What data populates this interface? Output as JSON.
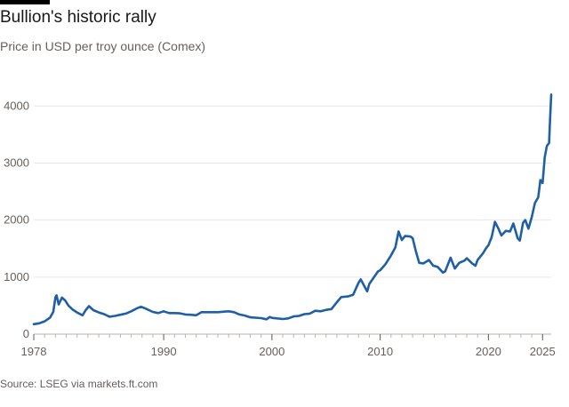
{
  "header": {
    "title": "Bullion's historic rally",
    "subtitle": "Price in USD per troy ounce (Comex)"
  },
  "footer": {
    "source": "Source: LSEG via markets.ft.com"
  },
  "colors": {
    "line": "#1f5fa6",
    "grid": "#e9e6e2",
    "axis": "#66605c"
  },
  "chart_data": {
    "type": "line",
    "title": "Bullion's historic rally",
    "subtitle": "Price in USD per troy ounce (Comex)",
    "xlabel": "",
    "ylabel": "",
    "xlim": [
      1978,
      2025.8
    ],
    "ylim": [
      0,
      4300
    ],
    "grid": true,
    "x_ticks": [
      1978,
      1990,
      2000,
      2010,
      2020,
      2025
    ],
    "y_ticks": [
      0,
      1000,
      2000,
      3000,
      4000
    ],
    "series": [
      {
        "values": [
          [
            1978.0,
            175
          ],
          [
            1978.5,
            190
          ],
          [
            1979.0,
            225
          ],
          [
            1979.5,
            290
          ],
          [
            1979.8,
            390
          ],
          [
            1980.0,
            650
          ],
          [
            1980.1,
            680
          ],
          [
            1980.3,
            520
          ],
          [
            1980.6,
            640
          ],
          [
            1980.9,
            590
          ],
          [
            1981.2,
            500
          ],
          [
            1981.6,
            430
          ],
          [
            1982.0,
            380
          ],
          [
            1982.5,
            330
          ],
          [
            1982.8,
            420
          ],
          [
            1983.1,
            490
          ],
          [
            1983.5,
            420
          ],
          [
            1984.0,
            380
          ],
          [
            1984.5,
            350
          ],
          [
            1985.0,
            305
          ],
          [
            1985.5,
            320
          ],
          [
            1986.0,
            340
          ],
          [
            1986.5,
            360
          ],
          [
            1987.0,
            400
          ],
          [
            1987.5,
            450
          ],
          [
            1987.9,
            480
          ],
          [
            1988.3,
            450
          ],
          [
            1989.0,
            390
          ],
          [
            1989.5,
            370
          ],
          [
            1990.0,
            400
          ],
          [
            1990.5,
            370
          ],
          [
            1991.0,
            370
          ],
          [
            1991.5,
            365
          ],
          [
            1992.0,
            345
          ],
          [
            1992.5,
            340
          ],
          [
            1993.0,
            330
          ],
          [
            1993.5,
            385
          ],
          [
            1994.0,
            385
          ],
          [
            1995.0,
            385
          ],
          [
            1996.0,
            400
          ],
          [
            1996.5,
            385
          ],
          [
            1997.0,
            345
          ],
          [
            1997.5,
            325
          ],
          [
            1998.0,
            295
          ],
          [
            1999.0,
            280
          ],
          [
            1999.5,
            260
          ],
          [
            1999.8,
            300
          ],
          [
            2000.0,
            285
          ],
          [
            2001.0,
            265
          ],
          [
            2001.5,
            275
          ],
          [
            2002.0,
            310
          ],
          [
            2002.5,
            320
          ],
          [
            2003.0,
            350
          ],
          [
            2003.5,
            360
          ],
          [
            2004.0,
            410
          ],
          [
            2004.5,
            400
          ],
          [
            2005.0,
            425
          ],
          [
            2005.5,
            440
          ],
          [
            2006.0,
            560
          ],
          [
            2006.4,
            650
          ],
          [
            2007.0,
            660
          ],
          [
            2007.5,
            690
          ],
          [
            2008.0,
            900
          ],
          [
            2008.2,
            960
          ],
          [
            2008.8,
            750
          ],
          [
            2009.0,
            880
          ],
          [
            2009.8,
            1100
          ],
          [
            2010.0,
            1120
          ],
          [
            2010.5,
            1230
          ],
          [
            2011.0,
            1380
          ],
          [
            2011.4,
            1520
          ],
          [
            2011.7,
            1800
          ],
          [
            2012.0,
            1650
          ],
          [
            2012.3,
            1720
          ],
          [
            2012.8,
            1710
          ],
          [
            2013.0,
            1680
          ],
          [
            2013.3,
            1450
          ],
          [
            2013.6,
            1250
          ],
          [
            2014.0,
            1240
          ],
          [
            2014.5,
            1300
          ],
          [
            2014.9,
            1200
          ],
          [
            2015.3,
            1180
          ],
          [
            2015.8,
            1080
          ],
          [
            2016.0,
            1100
          ],
          [
            2016.5,
            1340
          ],
          [
            2016.9,
            1150
          ],
          [
            2017.3,
            1250
          ],
          [
            2017.8,
            1290
          ],
          [
            2018.0,
            1330
          ],
          [
            2018.5,
            1240
          ],
          [
            2018.8,
            1200
          ],
          [
            2019.0,
            1300
          ],
          [
            2019.5,
            1420
          ],
          [
            2019.8,
            1510
          ],
          [
            2020.0,
            1560
          ],
          [
            2020.3,
            1700
          ],
          [
            2020.6,
            1970
          ],
          [
            2020.9,
            1860
          ],
          [
            2021.2,
            1730
          ],
          [
            2021.6,
            1810
          ],
          [
            2022.0,
            1800
          ],
          [
            2022.3,
            1940
          ],
          [
            2022.7,
            1680
          ],
          [
            2022.9,
            1640
          ],
          [
            2023.2,
            1950
          ],
          [
            2023.4,
            2000
          ],
          [
            2023.7,
            1850
          ],
          [
            2024.0,
            2050
          ],
          [
            2024.3,
            2300
          ],
          [
            2024.6,
            2400
          ],
          [
            2024.8,
            2700
          ],
          [
            2025.0,
            2650
          ],
          [
            2025.2,
            3100
          ],
          [
            2025.4,
            3300
          ],
          [
            2025.6,
            3350
          ],
          [
            2025.7,
            3800
          ],
          [
            2025.8,
            4200
          ]
        ]
      }
    ]
  }
}
